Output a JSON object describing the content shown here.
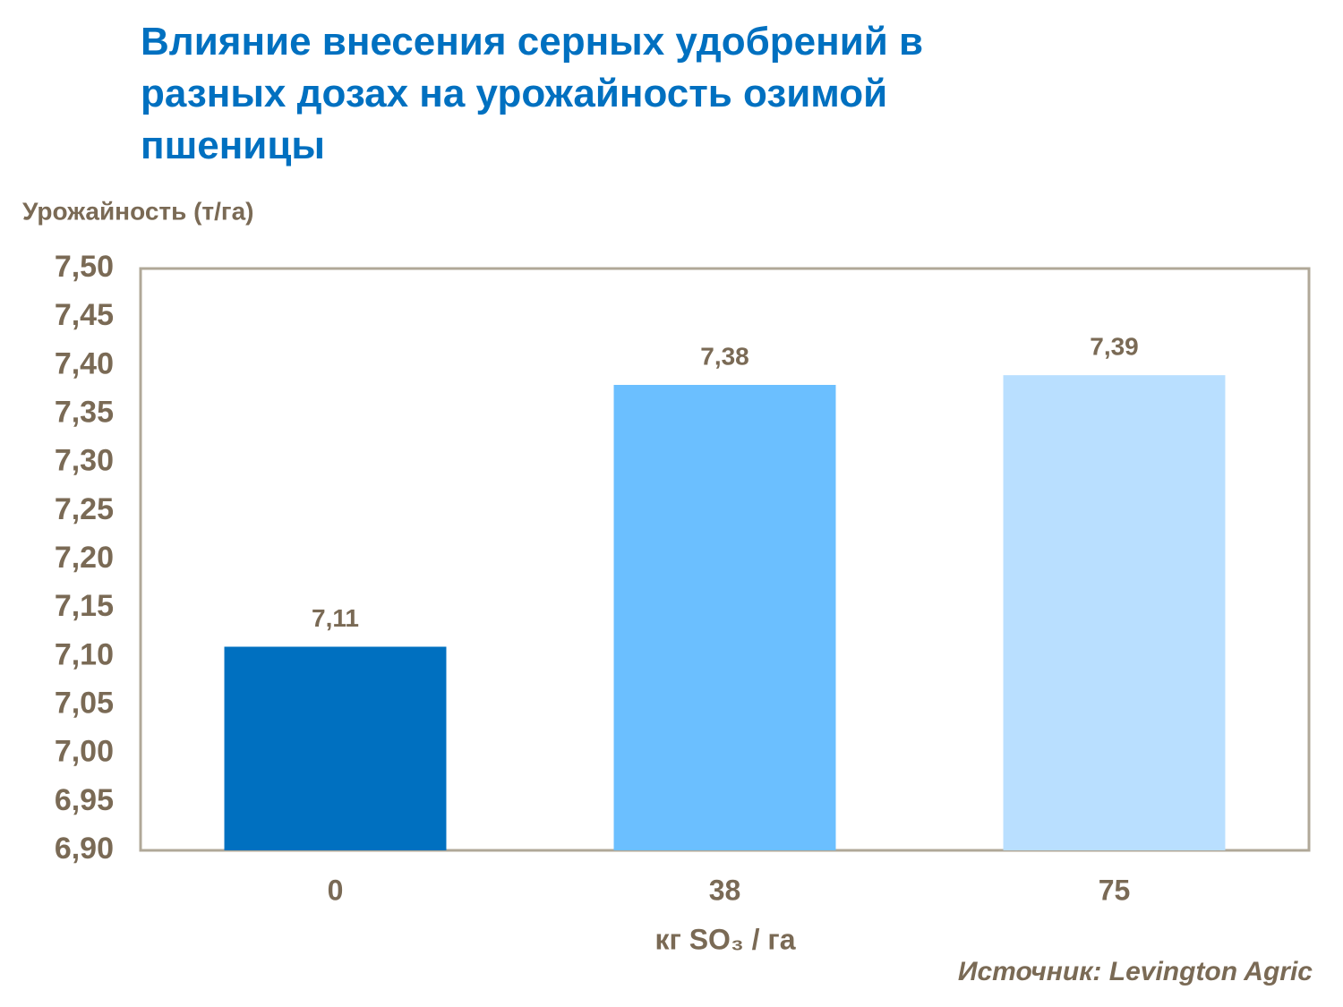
{
  "chart_data": {
    "type": "bar",
    "title": "Влияние внесения серных удобрений в разных дозах на урожайность озимой пшеницы",
    "y_label": "Урожайность  (т/га)",
    "x_label": "кг SO₃ / га",
    "source": "Источник: Levington Agric",
    "categories": [
      "0",
      "38",
      "75"
    ],
    "values": [
      7.11,
      7.38,
      7.39
    ],
    "value_labels": [
      "7,11",
      "7,38",
      "7,39"
    ],
    "colors": [
      "#0070c0",
      "#6bbfff",
      "#b9dfff"
    ],
    "ylim": [
      6.9,
      7.5
    ],
    "yticks": [
      {
        "value": 6.9,
        "label": "6,90"
      },
      {
        "value": 6.95,
        "label": "6,95"
      },
      {
        "value": 7.0,
        "label": "7,00"
      },
      {
        "value": 7.05,
        "label": "7,05"
      },
      {
        "value": 7.1,
        "label": "7,10"
      },
      {
        "value": 7.15,
        "label": "7,15"
      },
      {
        "value": 7.2,
        "label": "7,20"
      },
      {
        "value": 7.25,
        "label": "7,25"
      },
      {
        "value": 7.3,
        "label": "7,30"
      },
      {
        "value": 7.35,
        "label": "7,35"
      },
      {
        "value": 7.4,
        "label": "7,40"
      },
      {
        "value": 7.45,
        "label": "7,45"
      },
      {
        "value": 7.5,
        "label": "7,50"
      }
    ],
    "grid": false
  }
}
